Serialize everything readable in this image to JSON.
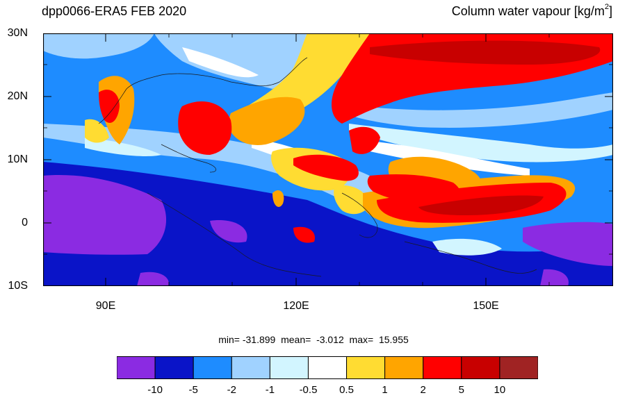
{
  "title_left": "dpp0066-ERA5  FEB 2020",
  "title_right": {
    "text": "Column water vapour [kg/m",
    "sup": "2",
    "close": "]"
  },
  "axes": {
    "y_labels": [
      "30N",
      "20N",
      "10N",
      "0",
      "10S"
    ],
    "x_labels": [
      "90E",
      "120E",
      "150E"
    ]
  },
  "stats": {
    "text": "min= -31.899  mean=  -3.012  max=  15.955"
  },
  "colorbar": {
    "colors": [
      "#8b2be2",
      "#0a14c8",
      "#1e8cff",
      "#a0d2ff",
      "#d2f5ff",
      "#ffffff",
      "#ffdc32",
      "#ffa500",
      "#ff0000",
      "#c80000",
      "#a02323"
    ],
    "labels": [
      "-10",
      "-5",
      "-2",
      "-1",
      "-0.5",
      "0.5",
      "1",
      "2",
      "5",
      "10"
    ]
  }
}
